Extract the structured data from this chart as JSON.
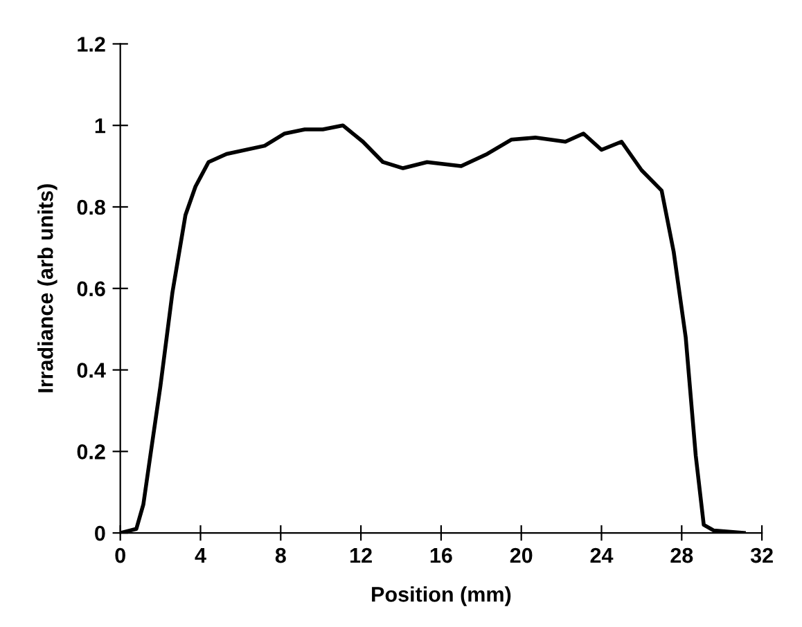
{
  "chart_data": {
    "type": "line",
    "xlabel": "Position (mm)",
    "ylabel": "Irradiance (arb units)",
    "x": [
      0,
      0.8,
      1.15,
      1.5,
      2.0,
      2.6,
      3.25,
      3.75,
      4.4,
      5.3,
      7.2,
      8.2,
      9.2,
      10.1,
      11.1,
      12.1,
      13.1,
      14.1,
      15.3,
      17.0,
      18.3,
      19.5,
      20.7,
      22.2,
      23.1,
      24.0,
      25.0,
      26.0,
      27.0,
      27.6,
      28.2,
      28.7,
      29.1,
      29.6,
      31.1
    ],
    "series": [
      {
        "color": "#000000",
        "values": [
          0,
          0.01,
          0.07,
          0.19,
          0.36,
          0.59,
          0.78,
          0.85,
          0.91,
          0.93,
          0.95,
          0.98,
          0.99,
          0.99,
          1.0,
          0.96,
          0.91,
          0.895,
          0.91,
          0.9,
          0.93,
          0.965,
          0.97,
          0.96,
          0.98,
          0.94,
          0.96,
          0.89,
          0.84,
          0.69,
          0.48,
          0.19,
          0.02,
          0.006,
          0
        ]
      }
    ],
    "xlim": [
      0,
      32
    ],
    "xticks": [
      0,
      4,
      8,
      12,
      16,
      20,
      24,
      28,
      32
    ],
    "ylim": [
      0,
      1.2
    ],
    "yticks": [
      0,
      0.2,
      0.4,
      0.6,
      0.8,
      1,
      1.2
    ],
    "grid": false,
    "legend": false,
    "marker": "none",
    "line_style": "solid"
  }
}
